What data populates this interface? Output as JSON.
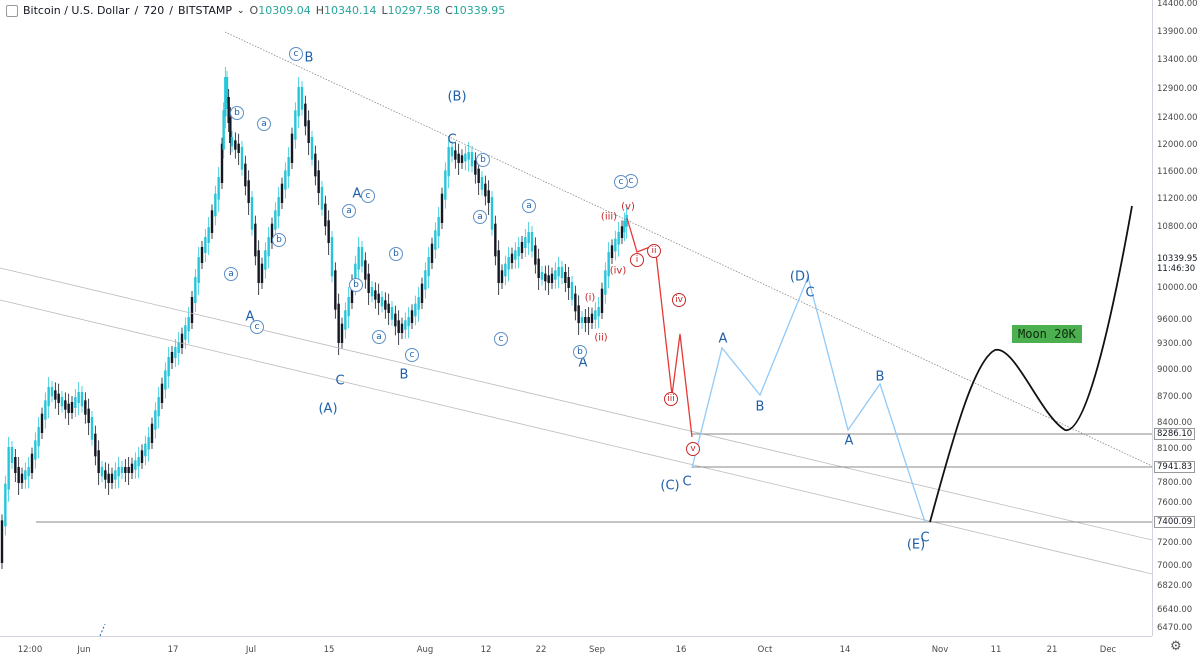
{
  "legend": {
    "symbol": "Bitcoin / U.S. Dollar",
    "interval": "720",
    "exchange": "BITSTAMP",
    "open_label": "O",
    "open": "10309.04",
    "high_label": "H",
    "high": "10340.14",
    "low_label": "L",
    "low": "10297.58",
    "close_label": "C",
    "close": "10339.95"
  },
  "price_axis": [
    "14400.00",
    "13900.00",
    "13400.00",
    "12900.00",
    "12400.00",
    "12000.00",
    "11600.00",
    "11200.00",
    "10800.00",
    "10000.00",
    "9600.00",
    "9300.00",
    "9000.00",
    "8700.00",
    "8400.00",
    "8100.00",
    "7800.00",
    "7600.00",
    "7200.00",
    "7000.00",
    "6820.00",
    "6640.00",
    "6470.00"
  ],
  "time_axis": [
    "12:00",
    "Jun",
    "17",
    "Jul",
    "15",
    "Aug",
    "12",
    "22",
    "Sep",
    "16",
    "Oct",
    "14",
    "Nov",
    "11",
    "21",
    "Dec"
  ],
  "last_price": {
    "value": "10339.95",
    "countdown": "11:46:30"
  },
  "price_tags": [
    "8286.10",
    "7941.83",
    "7400.09"
  ],
  "annotation": {
    "text": "Moon 20K",
    "color": "#4caf50"
  },
  "colors": {
    "up": "#26c6da",
    "down": "#131722",
    "impulse": "#e53935",
    "projection": "#90caf9",
    "wave_labels": "#1f5fa8",
    "subwave_labels": "#c62828"
  },
  "wave_labels": [
    "B",
    "(B)",
    "C",
    "A",
    "A",
    "C",
    "B",
    "(A)",
    "A",
    "(D)",
    "C",
    "A",
    "B",
    "B",
    "A",
    "(C)",
    "C",
    "(E)",
    "C"
  ],
  "circle_labels": [
    "c",
    "b",
    "a",
    "a",
    "b",
    "c",
    "c",
    "a",
    "b",
    "b",
    "a",
    "b",
    "a",
    "a",
    "c",
    "c",
    "b",
    "c",
    "c"
  ],
  "red_labels": [
    "(v)",
    "(iii)",
    "(iv)",
    "i",
    "ii",
    "iv",
    "iii",
    "v",
    "(i)",
    "(ii)"
  ],
  "chart_data": {
    "type": "candlestick",
    "symbol": "Bitcoin / U.S. Dollar",
    "ylim": [
      6400,
      14500
    ],
    "price_levels": [
      8286.1,
      7941.83,
      7400.09
    ],
    "annotations": [
      "Moon 20K"
    ]
  }
}
